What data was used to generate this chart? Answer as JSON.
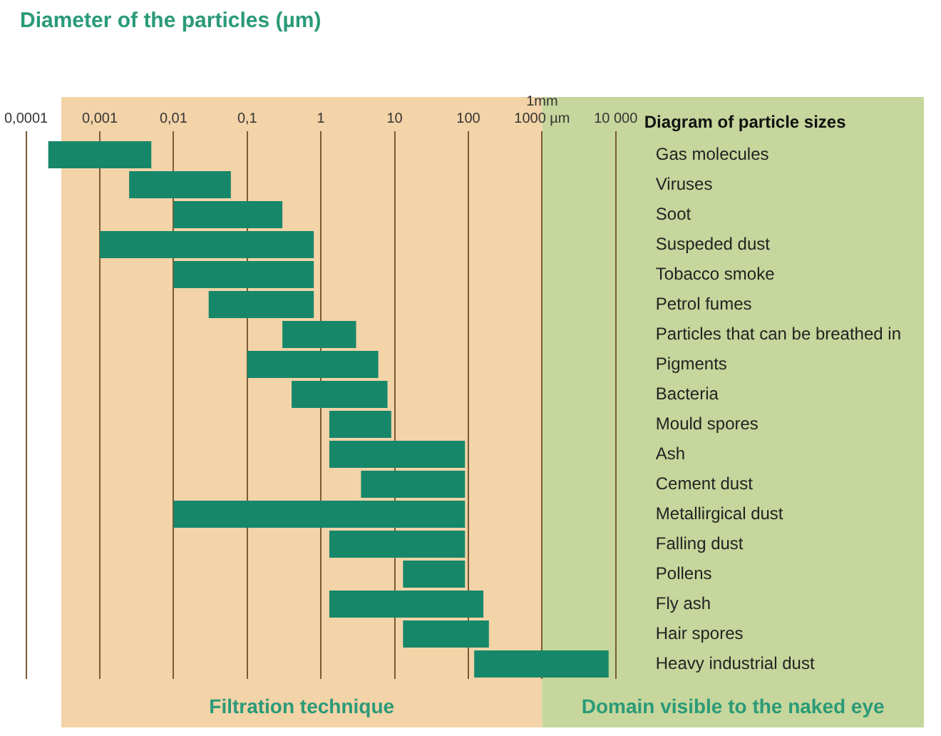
{
  "chart_data": {
    "type": "bar",
    "orientation": "horizontal",
    "title": "Diameter of the particles (µm)",
    "ylabel": "Diagram of particle sizes",
    "log": "x",
    "categories": [
      "Gas molecules",
      "Viruses",
      "Soot",
      "Suspeded dust",
      "Tobacco smoke",
      "Petrol fumes",
      "Particles that can be breathed in",
      "Pigments",
      "Bacteria",
      "Mould spores",
      "Ash",
      "Cement dust",
      "Metallirgical dust",
      "Falling dust",
      "Pollens",
      "Fly ash",
      "Hair spores",
      "Heavy industrial dust"
    ],
    "base": [
      0.0002,
      0.0025,
      0.01,
      0.001,
      0.01,
      0.03,
      0.3,
      0.1,
      0.4,
      1.3,
      1.3,
      3.5,
      0.01,
      1.3,
      13,
      1.3,
      13,
      120
    ],
    "values": [
      0.0048,
      0.0575,
      0.29,
      0.799,
      0.79,
      0.77,
      2.7,
      5.9,
      7.6,
      7.7,
      88.7,
      86.5,
      89.99,
      88.7,
      77,
      158.7,
      177,
      7880
    ],
    "color": "#17876a",
    "xlim": [
      0.0001,
      10000
    ],
    "xticks": [
      {
        "value": 0.0001,
        "label": "0,0001"
      },
      {
        "value": 0.001,
        "label": "0,001"
      },
      {
        "value": 0.01,
        "label": "0,01"
      },
      {
        "value": 0.1,
        "label": "0,1"
      },
      1,
      10,
      100,
      {
        "value": 1000,
        "label": "1mm\n1000 µm"
      },
      {
        "value": 10000,
        "label": "10 000"
      }
    ],
    "grid": "x",
    "bands": [
      {
        "axis": "x",
        "from": 0.0003,
        "to": 1000,
        "label": "Filtration technique",
        "color": "#f3d3a8"
      },
      {
        "axis": "x",
        "from": 1000,
        "to": 10000,
        "label": "Domain visible to the naked eye",
        "color": "#c6d69c"
      }
    ]
  }
}
